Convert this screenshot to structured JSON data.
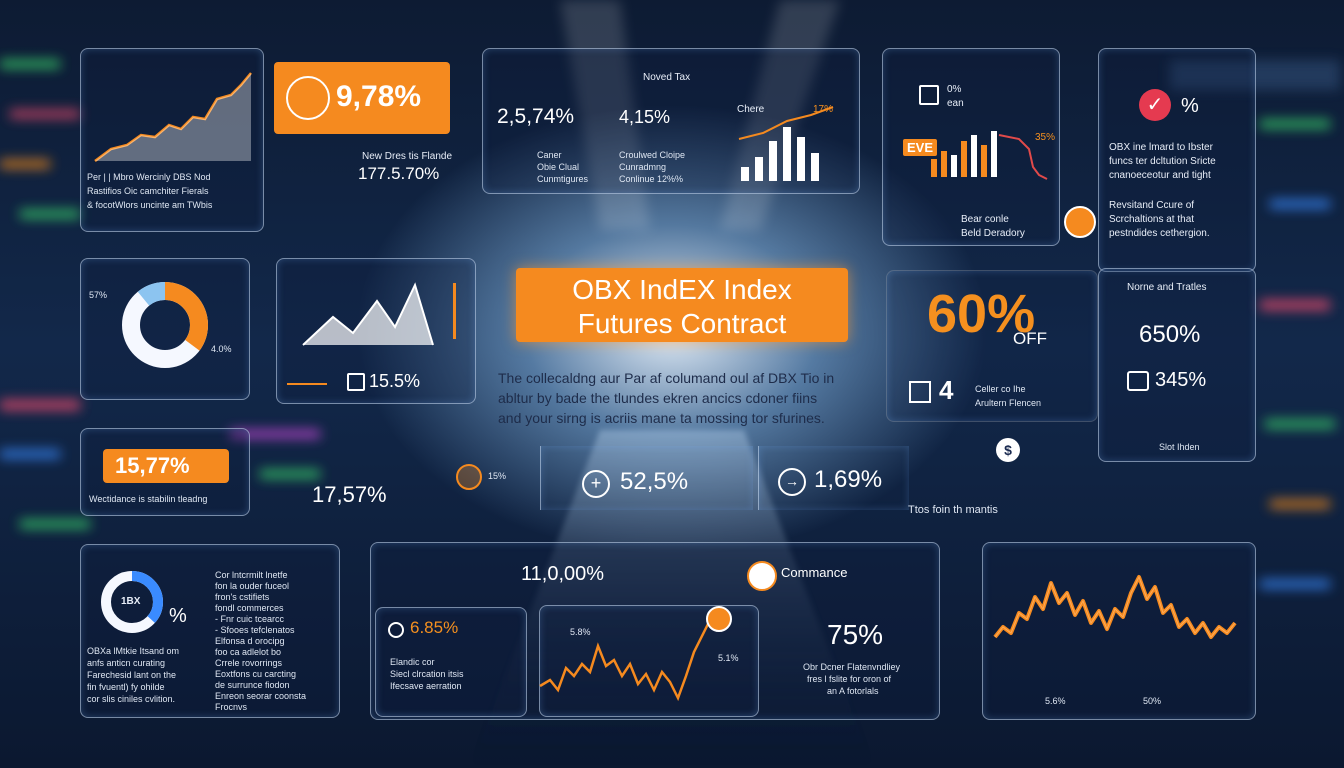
{
  "title": {
    "line1": "OBX IndEX Index",
    "line2": "Futures Contract"
  },
  "description": {
    "line1": "The collecaldng aur Par af columand oul af DBX Tio in",
    "line2": "abltur by bade the tlundes ekren ancics cdoner fiins",
    "line3": "and your sirng is acriis mane ta mossing tor sfurines."
  },
  "panel_top_left": {
    "line1": "Per | | Mbro Wercinly DBS Nod",
    "line2": "Rastifios Oic camchiter Fierals",
    "line3": "& focotWlors uncinte am TWbis"
  },
  "badge_main": {
    "value": "9,78%"
  },
  "note_top": {
    "label": "New Dres tis Flande",
    "value": "177.5.70%"
  },
  "panel_center_top": {
    "header": "Noved Tax",
    "value_left": "2,5,74%",
    "value_right": "4,15%",
    "left_line1": "Caner",
    "left_line2": "Obie Clual",
    "left_line3": "Cunmtigures",
    "right_line1": "Croulwed Cloipe",
    "right_line2": "Cunradmng",
    "right_line3": "Conlinue 12%%",
    "chart_label_a": "Chere",
    "chart_label_b": "17%"
  },
  "panel_top_right_a": {
    "label_a": "0%",
    "label_b": "ean",
    "tag": "EVE",
    "label_c": "35%",
    "label_d": "Bear conle",
    "label_e": "Beld Deradory"
  },
  "panel_top_right_b": {
    "value": "%",
    "line1": "OBX ine lmard to Ibster",
    "line2": "funcs ter dcltution Sricte",
    "line3": "cnanoeceotur and tight",
    "line4": "Revsitand Ccure of",
    "line5": "Scrchaltions at that",
    "line6": "pestndides cethergion."
  },
  "donut_panel": {
    "label_left": "57%",
    "label_right": "4.0%"
  },
  "mountain_panel": {
    "value": "15.5%"
  },
  "offer": {
    "value": "60%",
    "off": "OFF",
    "count": "4",
    "caption1": "Celler co Ihe",
    "caption2": "Arultern Flencen"
  },
  "right_stats": {
    "title": "Norne and Tratles",
    "value_a": "650%",
    "value_b": "345%",
    "footer": "Slot Ihden"
  },
  "left_badge": {
    "value": "15,77%",
    "caption": "Wectidance is stabilin tleadng"
  },
  "mid_left_value": "17,57%",
  "mid_row": {
    "coin_label": "15%",
    "value_a": "52,5%",
    "value_b": "1,69%",
    "caption": "Ttos foin th mantis"
  },
  "bottom_left": {
    "value": "%",
    "inner": "1BX",
    "line1": "OBXa lMtkie Itsand om",
    "line2": "anfs anticn curating",
    "line3": "Farechesid lant on the",
    "line4": "fin fvuentl) fy ohilde",
    "line5": "cor slis ciniles cvlition.",
    "col_line1": "Cor lntcrmilt lnetfe",
    "col_line2": "fon la ouder fuceol",
    "col_line3": "fron's cstifiets",
    "col_line4": "fondl commerces",
    "col_line5": "- Fnr cuic tcearcc",
    "col_line6": "- Sfooes tefclenatos",
    "col_line7": "Elfonsa d orocipg",
    "col_line8": "foo ca adlelot bo",
    "col_line9": "Crrele rovorrings",
    "col_line10": "Eoxtfons cu carcting",
    "col_line11": "de surrunce fiodon",
    "col_line12": "Enreon seorar coonsta",
    "col_line13": "Frocnvs"
  },
  "bottom_center": {
    "value_top": "11,0,00%",
    "sub_value": "6.85%",
    "sub_line1": "Elandic cor",
    "sub_line2": "Siecl clrcation itsis",
    "sub_line3": "Ifecsave aerration",
    "chart_label_a": "5.8%",
    "chart_label_b": "5.1%",
    "commerce": "Commance",
    "big_value": "75%",
    "caption1": "Obr Dcner Flatenvndliey",
    "caption2": "fres l fslite for oron of",
    "caption3": "an A fotorlals"
  },
  "bottom_right": {
    "x_label_a": "5.6%",
    "x_label_b": "50%"
  },
  "colors": {
    "accent": "#f58a1f",
    "panel_border": "#d2e6ff",
    "background": "#12284a"
  }
}
